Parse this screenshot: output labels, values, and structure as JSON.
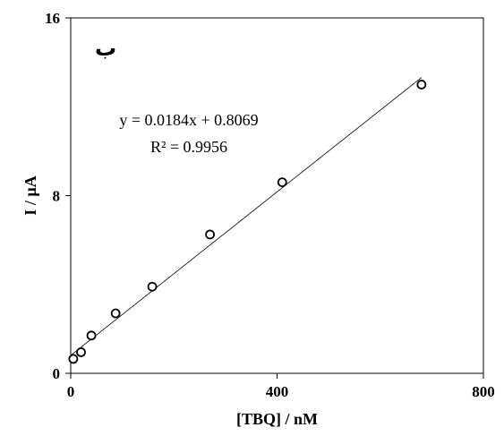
{
  "chart_data": {
    "type": "scatter",
    "panel_label": "ب",
    "xlabel": "[TBQ] / nM",
    "ylabel": "I / µA",
    "xlim": [
      0,
      800
    ],
    "ylim": [
      0,
      16
    ],
    "xticks": [
      "0",
      "400",
      "800"
    ],
    "yticks": [
      "0",
      "8",
      "16"
    ],
    "grid": false,
    "points": [
      {
        "x": 5,
        "y": 0.65
      },
      {
        "x": 20,
        "y": 0.95
      },
      {
        "x": 40,
        "y": 1.7
      },
      {
        "x": 87,
        "y": 2.7
      },
      {
        "x": 158,
        "y": 3.9
      },
      {
        "x": 270,
        "y": 6.25
      },
      {
        "x": 410,
        "y": 8.6
      },
      {
        "x": 680,
        "y": 13.0
      }
    ],
    "trendline": {
      "slope": 0.0184,
      "intercept": 0.8069,
      "x_start": 0,
      "x_end": 680
    },
    "equation": "y = 0.0184x + 0.8069",
    "r_squared": "R² = 0.9956"
  }
}
